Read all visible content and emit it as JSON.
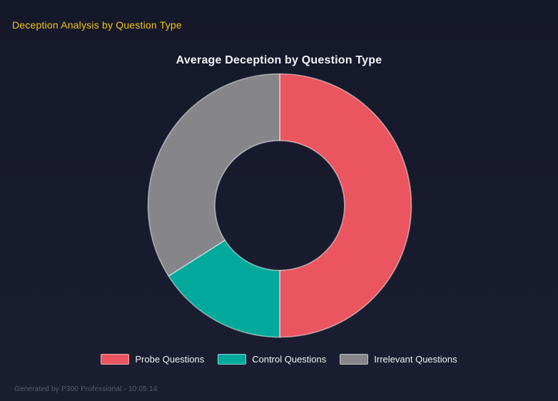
{
  "page": {
    "title": "Deception Analysis by Question Type",
    "footer": "Generated by P300 Professional - 10:05:14"
  },
  "theme": {
    "background_top": "#151829",
    "background_bottom": "#1b1e31",
    "page_title_color": "#f1c40f",
    "chart_title_color": "#f2f3f6",
    "legend_text_color": "#f0f2f5",
    "footer_text_color": "#575c6e",
    "segment_border_color": "rgba(255,255,255,0.5)"
  },
  "chart_data": {
    "type": "pie",
    "variant": "donut",
    "title": "Average Deception by Question Type",
    "categories": [
      "Probe Questions",
      "Control Questions",
      "Irrelevant Questions"
    ],
    "values_percent": [
      50,
      16,
      34
    ],
    "segment_colors": [
      "#ea5560",
      "#00a99c",
      "#86868a"
    ],
    "cutout_percent": 49,
    "rotation_deg": 0,
    "legend_position": "bottom",
    "data_labels": false
  }
}
